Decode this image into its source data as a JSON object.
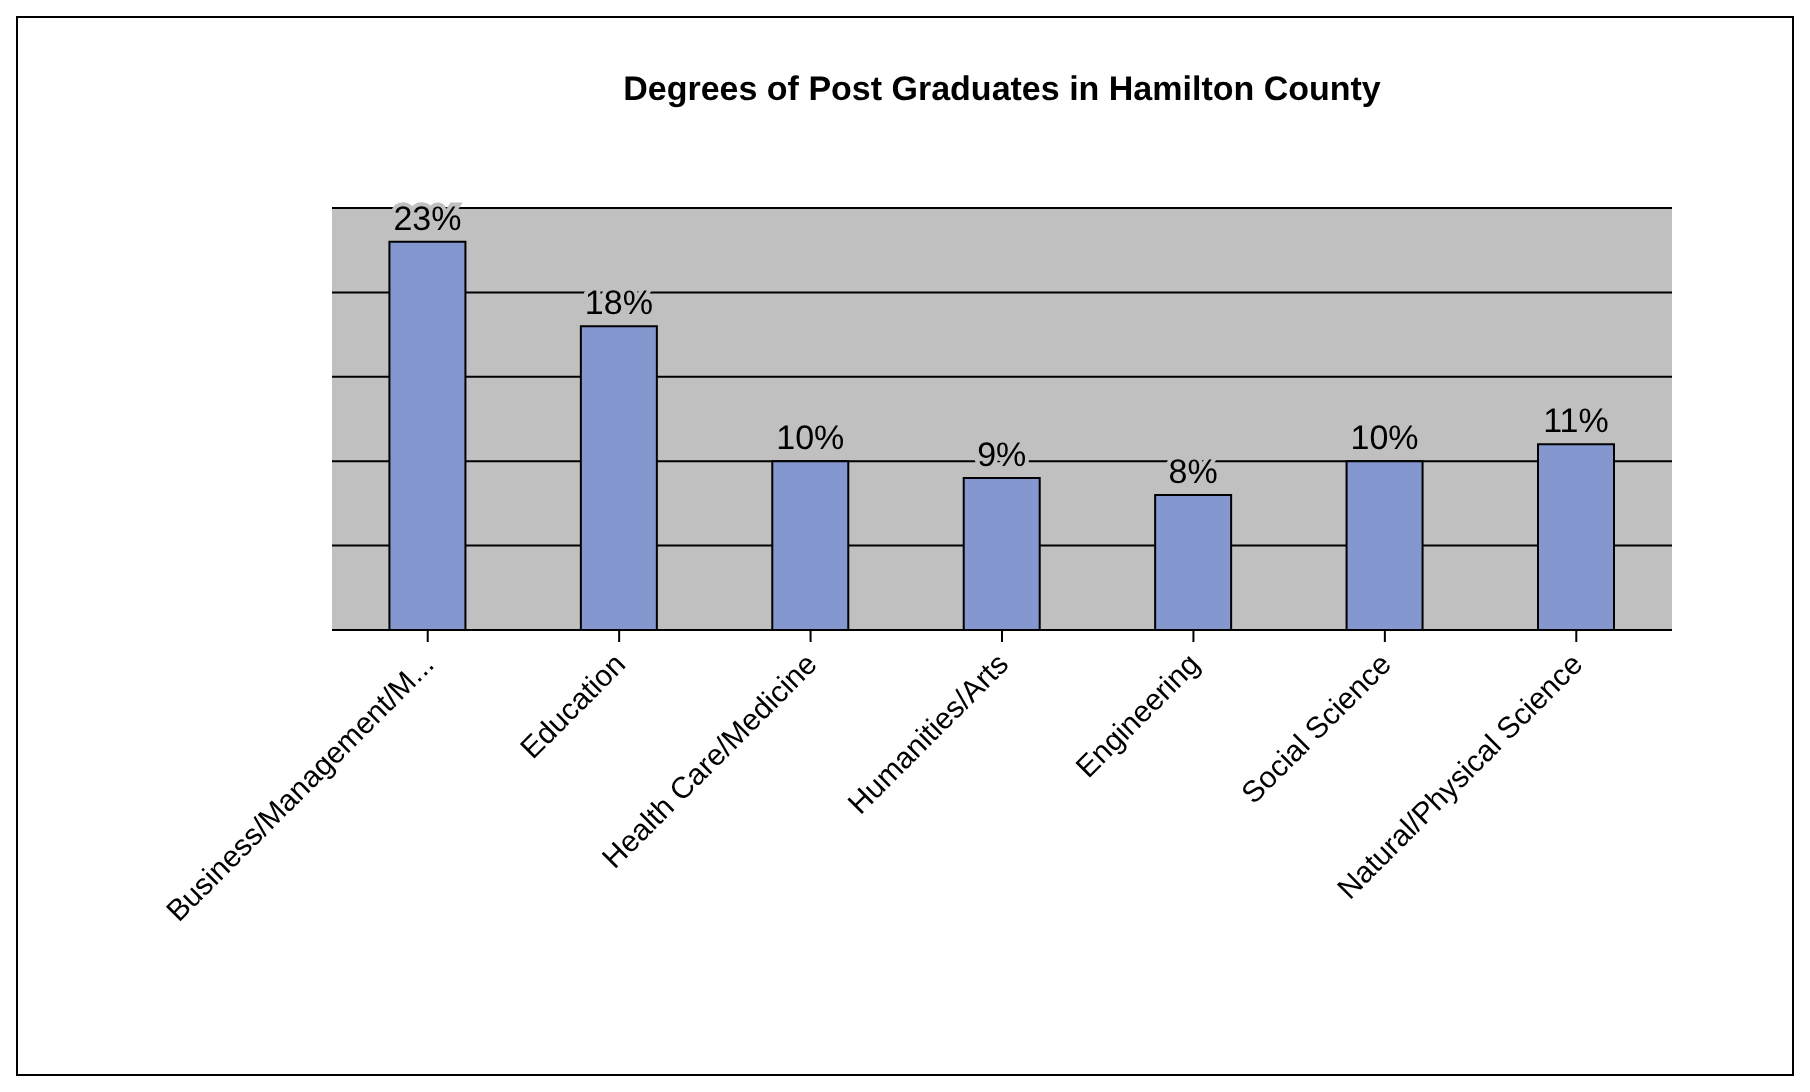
{
  "chart_data": {
    "type": "bar",
    "title": "Degrees of Post Graduates in Hamilton County",
    "categories": [
      "Business/Management/M...",
      "Education",
      "Health Care/Medicine",
      "Humanities/Arts",
      "Engineering",
      "Social Science",
      "Natural/Physical Science"
    ],
    "values": [
      23,
      18,
      10,
      9,
      8,
      10,
      11
    ],
    "value_labels": [
      "23%",
      "18%",
      "10%",
      "9%",
      "8%",
      "10%",
      "11%"
    ],
    "color": "#8497cf",
    "ylim": [
      0,
      25
    ],
    "yticks": [
      {
        "value": 0,
        "label": null
      },
      {
        "value": 5,
        "label": null
      },
      {
        "value": 10,
        "label": null
      },
      {
        "value": 15,
        "label": null
      },
      {
        "value": 20,
        "label": null
      },
      {
        "value": 25,
        "label": null
      }
    ],
    "tick_labels": "x",
    "grid": "y"
  }
}
